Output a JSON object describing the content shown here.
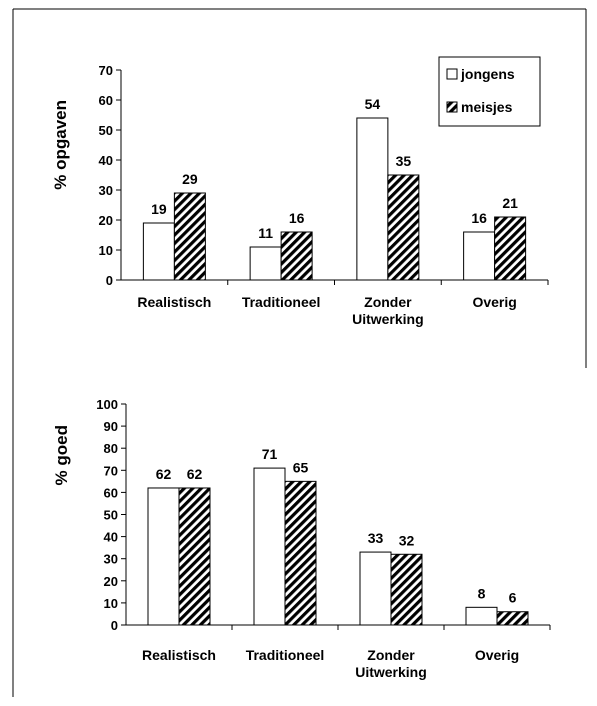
{
  "chart_data": [
    {
      "type": "bar",
      "ylabel": "% opgaven",
      "ylim": [
        0,
        70
      ],
      "ytick_step": 10,
      "categories": [
        [
          "Realistisch"
        ],
        [
          "Traditioneel"
        ],
        [
          "Zonder",
          "Uitwerking"
        ],
        [
          "Overig"
        ]
      ],
      "series": [
        {
          "name": "jongens",
          "pattern": "plain",
          "values": [
            19,
            11,
            54,
            16
          ]
        },
        {
          "name": "meisjes",
          "pattern": "hatched",
          "values": [
            29,
            16,
            35,
            21
          ]
        }
      ],
      "legend": "top-right",
      "grid": false
    },
    {
      "type": "bar",
      "ylabel": "% goed",
      "ylim": [
        0,
        100
      ],
      "ytick_step": 10,
      "categories": [
        [
          "Realistisch"
        ],
        [
          "Traditioneel"
        ],
        [
          "Zonder",
          "Uitwerking"
        ],
        [
          "Overig"
        ]
      ],
      "series": [
        {
          "name": "jongens",
          "pattern": "plain",
          "values": [
            62,
            71,
            33,
            8
          ]
        },
        {
          "name": "meisjes",
          "pattern": "hatched",
          "values": [
            62,
            65,
            32,
            6
          ]
        }
      ],
      "legend": "none",
      "grid": false
    }
  ],
  "colors": {
    "bar_fill": "#ffffff",
    "hatch": "#000000",
    "stroke": "#000000",
    "frame": "#000000"
  }
}
